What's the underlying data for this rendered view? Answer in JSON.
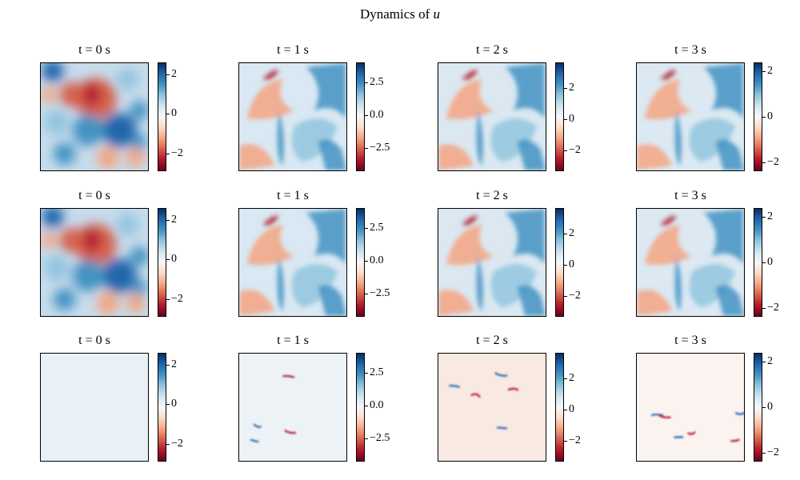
{
  "figure": {
    "title_prefix": "Dynamics of ",
    "title_symbol": "u"
  },
  "chart_data": {
    "type": "heatmap",
    "title": "Dynamics of u",
    "colormap": "RdBu (red = negative, blue = positive)",
    "grid": false,
    "rows": [
      {
        "panels": [
          {
            "title": "t = 0 s",
            "vmin": -2.9,
            "vmax": 2.6,
            "ticks": [
              "2",
              "0",
              "−2"
            ],
            "tick_values": [
              2,
              0,
              -2
            ]
          },
          {
            "title": "t = 1 s",
            "vmin": -4.3,
            "vmax": 4.0,
            "ticks": [
              "2.5",
              "0.0",
              "−2.5"
            ],
            "tick_values": [
              2.5,
              0,
              -2.5
            ]
          },
          {
            "title": "t = 2 s",
            "vmin": -3.3,
            "vmax": 3.6,
            "ticks": [
              "2",
              "0",
              "−2"
            ],
            "tick_values": [
              2,
              0,
              -2
            ]
          },
          {
            "title": "t = 3 s",
            "vmin": -2.4,
            "vmax": 2.4,
            "ticks": [
              "2",
              "0",
              "−2"
            ],
            "tick_values": [
              2,
              0,
              -2
            ]
          }
        ]
      },
      {
        "panels": [
          {
            "title": "t = 0 s",
            "vmin": -2.9,
            "vmax": 2.6,
            "ticks": [
              "2",
              "0",
              "−2"
            ],
            "tick_values": [
              2,
              0,
              -2
            ]
          },
          {
            "title": "t = 1 s",
            "vmin": -4.3,
            "vmax": 4.0,
            "ticks": [
              "2.5",
              "0.0",
              "−2.5"
            ],
            "tick_values": [
              2.5,
              0,
              -2.5
            ]
          },
          {
            "title": "t = 2 s",
            "vmin": -3.3,
            "vmax": 3.6,
            "ticks": [
              "2",
              "0",
              "−2"
            ],
            "tick_values": [
              2,
              0,
              -2
            ]
          },
          {
            "title": "t = 3 s",
            "vmin": -2.4,
            "vmax": 2.4,
            "ticks": [
              "2",
              "0",
              "−2"
            ],
            "tick_values": [
              2,
              0,
              -2
            ]
          }
        ]
      },
      {
        "panels": [
          {
            "title": "t = 0 s",
            "vmin": -2.9,
            "vmax": 2.6,
            "ticks": [
              "2",
              "0",
              "−2"
            ],
            "tick_values": [
              2,
              0,
              -2
            ]
          },
          {
            "title": "t = 1 s",
            "vmin": -4.3,
            "vmax": 4.0,
            "ticks": [
              "2.5",
              "0.0",
              "−2.5"
            ],
            "tick_values": [
              2.5,
              0,
              -2.5
            ]
          },
          {
            "title": "t = 2 s",
            "vmin": -3.3,
            "vmax": 3.6,
            "ticks": [
              "2",
              "0",
              "−2"
            ],
            "tick_values": [
              2,
              0,
              -2
            ]
          },
          {
            "title": "t = 3 s",
            "vmin": -2.4,
            "vmax": 2.4,
            "ticks": [
              "2",
              "0",
              "−2"
            ],
            "tick_values": [
              2,
              0,
              -2
            ]
          }
        ]
      }
    ]
  }
}
